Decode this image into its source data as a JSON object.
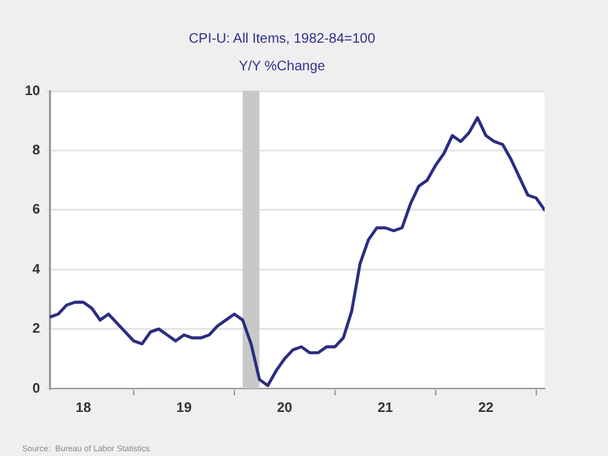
{
  "chart_data": {
    "type": "line",
    "title": "CPI-U: All Items, 1982-84=100",
    "subtitle": "Y/Y %Change",
    "x": [
      "2018-03",
      "2018-04",
      "2018-05",
      "2018-06",
      "2018-07",
      "2018-08",
      "2018-09",
      "2018-10",
      "2018-11",
      "2018-12",
      "2019-01",
      "2019-02",
      "2019-03",
      "2019-04",
      "2019-05",
      "2019-06",
      "2019-07",
      "2019-08",
      "2019-09",
      "2019-10",
      "2019-11",
      "2019-12",
      "2020-01",
      "2020-02",
      "2020-03",
      "2020-04",
      "2020-05",
      "2020-06",
      "2020-07",
      "2020-08",
      "2020-09",
      "2020-10",
      "2020-11",
      "2020-12",
      "2021-01",
      "2021-02",
      "2021-03",
      "2021-04",
      "2021-05",
      "2021-06",
      "2021-07",
      "2021-08",
      "2021-09",
      "2021-10",
      "2021-11",
      "2021-12",
      "2022-01",
      "2022-02",
      "2022-03",
      "2022-04",
      "2022-05",
      "2022-06",
      "2022-07",
      "2022-08",
      "2022-09",
      "2022-10",
      "2022-11",
      "2022-12",
      "2023-01",
      "2023-02"
    ],
    "series": [
      {
        "color": "#2b2d80",
        "values": [
          2.4,
          2.5,
          2.8,
          2.9,
          2.9,
          2.7,
          2.3,
          2.5,
          2.2,
          1.9,
          1.6,
          1.5,
          1.9,
          2.0,
          1.8,
          1.6,
          1.8,
          1.7,
          1.7,
          1.8,
          2.1,
          2.3,
          2.5,
          2.3,
          1.5,
          0.3,
          0.1,
          0.6,
          1.0,
          1.3,
          1.4,
          1.2,
          1.2,
          1.4,
          1.4,
          1.7,
          2.6,
          4.2,
          5.0,
          5.4,
          5.4,
          5.3,
          5.4,
          6.2,
          6.8,
          7.0,
          7.5,
          7.9,
          8.5,
          8.3,
          8.6,
          9.1,
          8.5,
          8.3,
          8.2,
          7.7,
          7.1,
          6.5,
          6.4,
          6.0
        ]
      }
    ],
    "xlim": [
      "2018-03",
      "2023-02"
    ],
    "xticks": [
      {
        "value": "2018-07",
        "label": "18"
      },
      {
        "value": "2019-01",
        "label": null
      },
      {
        "value": "2019-07",
        "label": "19"
      },
      {
        "value": "2020-01",
        "label": null
      },
      {
        "value": "2020-07",
        "label": "20"
      },
      {
        "value": "2021-01",
        "label": null
      },
      {
        "value": "2021-07",
        "label": "21"
      },
      {
        "value": "2022-01",
        "label": null
      },
      {
        "value": "2022-07",
        "label": "22"
      },
      {
        "value": "2023-01",
        "label": null
      }
    ],
    "ylim": [
      0,
      10
    ],
    "yticks": [
      0,
      2,
      4,
      6,
      8,
      10
    ],
    "bands": [
      {
        "axis": "x",
        "from": "2020-02",
        "to": "2020-04",
        "color": "#c8c8c8"
      }
    ],
    "grid": "y",
    "legend": false,
    "marker": "none",
    "line_style": "solid",
    "annotations": [
      "Source:  Bureau of Labor Statistics"
    ]
  }
}
